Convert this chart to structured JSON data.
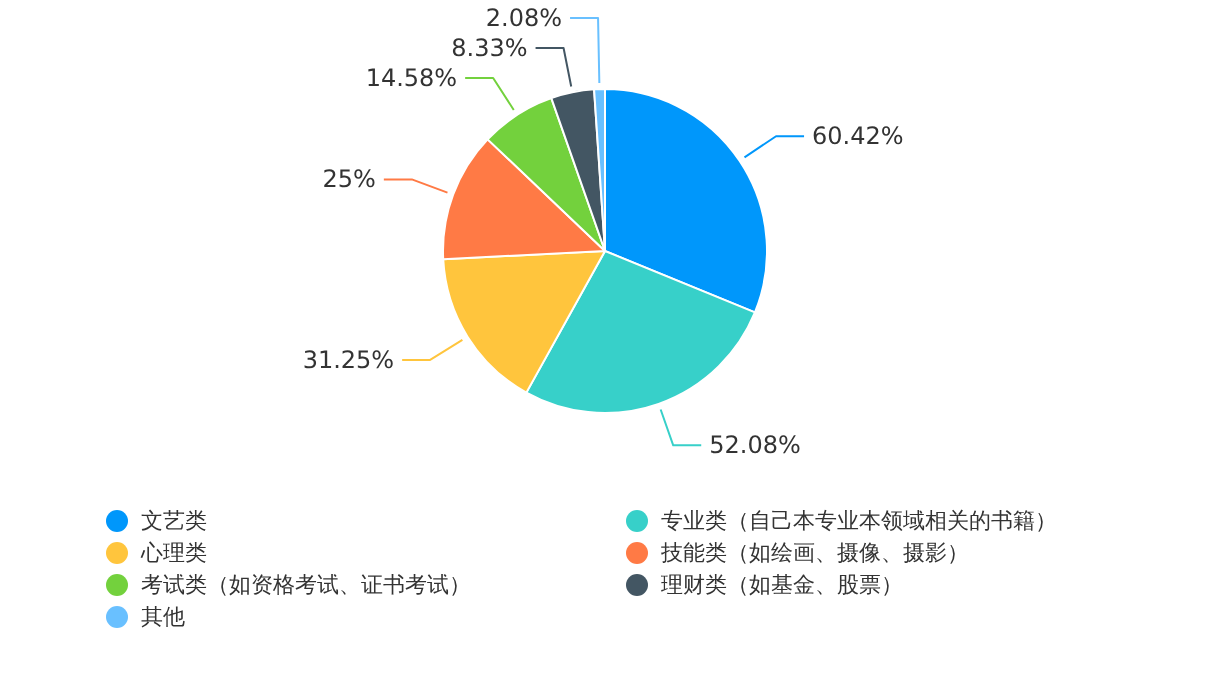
{
  "chart_data": {
    "type": "pie",
    "categories": [
      "文艺类",
      "专业类（自己本专业本领域相关的书籍）",
      "心理类",
      "技能类（如绘画、摄像、摄影）",
      "考试类（如资格考试、证书考试）",
      "理财类（如基金、股票）",
      "其他"
    ],
    "values": [
      60.42,
      52.08,
      31.25,
      25,
      14.58,
      8.33,
      2.08
    ],
    "colors": [
      "#0097fb",
      "#37d0c9",
      "#ffc53d",
      "#ff7a45",
      "#73d13d",
      "#435663",
      "#69c0ff"
    ],
    "value_labels": [
      "60.42%",
      "52.08%",
      "31.25%",
      "25%",
      "14.58%",
      "8.33%",
      "2.08%"
    ],
    "legend": "bottom"
  }
}
